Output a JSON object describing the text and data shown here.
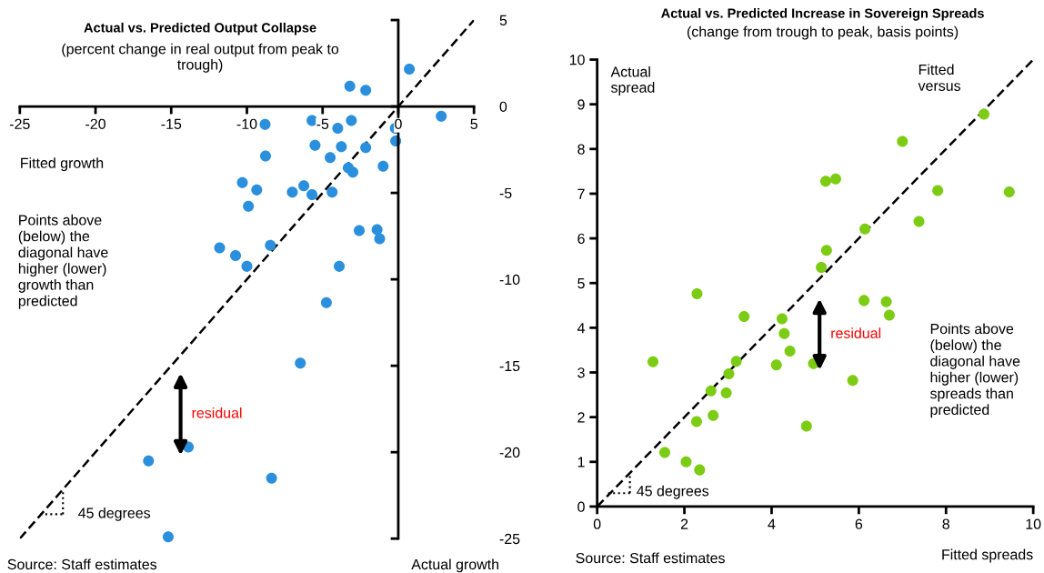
{
  "chart_data": [
    {
      "type": "scatter",
      "title": "Actual vs. Predicted Output Collapse",
      "subtitle": "(percent change in real output from peak to\ntrough)",
      "xlabel": "Fitted growth",
      "xlim": [
        -25,
        5
      ],
      "ylim": [
        -25,
        5
      ],
      "xticks": [
        -25,
        -20,
        -15,
        -10,
        -5,
        0,
        5
      ],
      "yticks": [
        -25,
        -20,
        -15,
        -10,
        -5,
        0,
        5
      ],
      "series": [
        {
          "type": "scatter",
          "color": "#2a8fdc",
          "marker": "circle",
          "x": [
            0.73,
            -3.2,
            -2.15,
            2.84,
            -8.8,
            -5.7,
            -4.0,
            -3.1,
            -0.2,
            -0.17,
            -5.5,
            -3.76,
            -2.15,
            -8.77,
            -4.5,
            -3.3,
            -3.0,
            -1.0,
            -10.3,
            -9.35,
            -7.0,
            -6.24,
            -5.7,
            -4.37,
            -9.9,
            -2.58,
            -1.4,
            -1.23,
            -11.8,
            -10.75,
            -10.0,
            -8.45,
            -3.9,
            -4.75,
            -6.47,
            -13.87,
            -16.5,
            -8.37,
            -15.2
          ],
          "values": [
            2.16,
            1.18,
            0.94,
            -0.56,
            -1.03,
            -0.81,
            -1.26,
            -0.81,
            -1.26,
            -2.0,
            -2.25,
            -2.33,
            -2.38,
            -2.86,
            -2.95,
            -3.55,
            -3.8,
            -3.46,
            -4.4,
            -4.83,
            -4.96,
            -4.59,
            -5.1,
            -4.96,
            -5.77,
            -7.18,
            -7.12,
            -7.65,
            -8.18,
            -8.63,
            -9.25,
            -8.03,
            -9.25,
            -11.35,
            -14.85,
            -19.7,
            -20.5,
            -21.5,
            -24.9
          ]
        },
        {
          "type": "line",
          "color": "#000000",
          "line_style": "dashed",
          "marker": "none",
          "x": [
            -25,
            5
          ],
          "values": [
            -25,
            5
          ]
        }
      ],
      "annotations": [
        "Points above\n(below) the\ndiagonal have\nhigher (lower)\ngrowth than\npredicted",
        "residual",
        "45 degrees",
        "Source: Staff estimates",
        "Actual growth"
      ]
    },
    {
      "type": "scatter",
      "title": "Actual vs. Predicted Increase in Sovereign Spreads",
      "subtitle": "(change from trough to peak, basis points)",
      "xlabel": "Fitted spreads",
      "ylabel": "Actual\nspread",
      "xlim": [
        0,
        10
      ],
      "ylim": [
        0,
        10
      ],
      "xticks": [
        0,
        2,
        4,
        6,
        8,
        10
      ],
      "yticks": [
        0,
        1,
        2,
        3,
        4,
        5,
        6,
        7,
        8,
        9,
        10
      ],
      "series": [
        {
          "type": "scatter",
          "color": "#7ccc14",
          "marker": "circle",
          "x": [
            8.87,
            7.0,
            5.24,
            5.47,
            7.81,
            9.45,
            7.38,
            6.14,
            5.26,
            5.14,
            2.29,
            3.37,
            4.24,
            4.29,
            4.42,
            1.28,
            3.19,
            4.11,
            4.96,
            3.02,
            2.61,
            2.96,
            2.66,
            2.28,
            6.12,
            6.63,
            6.7,
            5.86,
            4.8,
            1.55,
            2.04,
            2.35
          ],
          "values": [
            8.78,
            8.17,
            7.28,
            7.33,
            7.07,
            7.04,
            6.38,
            6.21,
            5.73,
            5.35,
            4.76,
            4.25,
            4.2,
            3.87,
            3.48,
            3.24,
            3.25,
            3.17,
            3.2,
            2.97,
            2.59,
            2.54,
            2.04,
            1.9,
            4.61,
            4.58,
            4.28,
            2.82,
            1.8,
            1.21,
            1.0,
            0.82
          ]
        },
        {
          "type": "line",
          "color": "#000000",
          "line_style": "dashed",
          "marker": "none",
          "x": [
            0,
            10
          ],
          "values": [
            0,
            10
          ]
        }
      ],
      "annotations": [
        "Fitted\nversus",
        "Points above\n(below) the\ndiagonal have\nhigher (lower)\nspreads than\npredicted",
        "residual",
        "45 degrees",
        "Source: Staff estimates"
      ]
    }
  ]
}
